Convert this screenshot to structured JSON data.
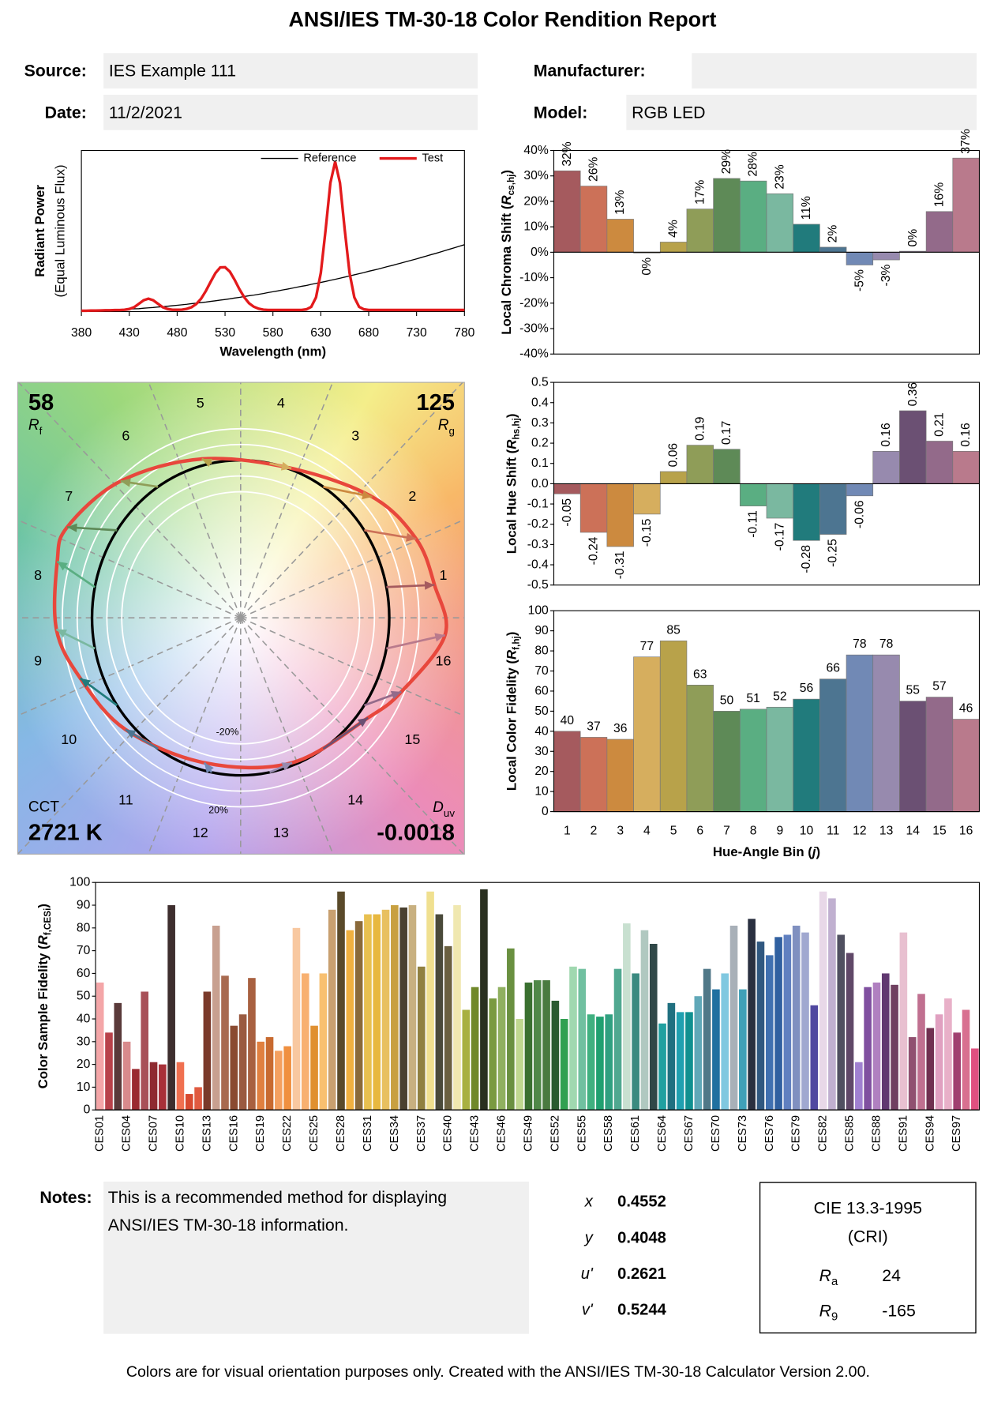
{
  "header": {
    "title": "ANSI/IES TM-30-18 Color Rendition Report",
    "fields": [
      {
        "label": "Source:",
        "value": "IES Example 111"
      },
      {
        "label": "Date:",
        "value": "11/2/2021"
      },
      {
        "label": "Manufacturer:"
      },
      {
        "label": "Model:",
        "value": "RGB LED"
      }
    ]
  },
  "chart_data": [
    {
      "type": "line",
      "xlabel": "Wavelength (nm)",
      "ylabel": [
        "Radiant Power",
        "(Equal Luminous Flux)"
      ],
      "legend": "top-right",
      "xlim": [
        380,
        780
      ],
      "xticks": [
        380,
        430,
        480,
        530,
        580,
        630,
        680,
        730,
        780
      ],
      "ylim": [
        0,
        1
      ],
      "x": [
        380,
        385,
        390,
        395,
        400,
        405,
        410,
        415,
        420,
        425,
        430,
        435,
        440,
        445,
        450,
        455,
        460,
        465,
        470,
        475,
        480,
        485,
        490,
        495,
        500,
        505,
        510,
        515,
        520,
        525,
        530,
        535,
        540,
        545,
        550,
        555,
        560,
        565,
        570,
        575,
        580,
        585,
        590,
        595,
        600,
        605,
        610,
        615,
        620,
        625,
        630,
        635,
        640,
        645,
        650,
        655,
        660,
        665,
        670,
        675,
        680,
        685,
        690,
        695,
        700,
        705,
        710,
        715,
        720,
        725,
        730,
        735,
        740,
        745,
        750,
        755,
        760,
        765,
        770,
        775,
        780
      ],
      "series": [
        {
          "name": "Reference",
          "color": "#000000",
          "values": [
            0.005,
            0.005,
            0.006,
            0.006,
            0.007,
            0.008,
            0.009,
            0.01,
            0.011,
            0.013,
            0.015,
            0.017,
            0.018,
            0.021,
            0.023,
            0.025,
            0.028,
            0.03,
            0.033,
            0.036,
            0.039,
            0.042,
            0.045,
            0.049,
            0.052,
            0.056,
            0.059,
            0.063,
            0.067,
            0.071,
            0.075,
            0.079,
            0.084,
            0.088,
            0.093,
            0.098,
            0.102,
            0.107,
            0.112,
            0.118,
            0.123,
            0.128,
            0.134,
            0.139,
            0.145,
            0.151,
            0.157,
            0.162,
            0.169,
            0.175,
            0.181,
            0.187,
            0.194,
            0.2,
            0.207,
            0.214,
            0.221,
            0.228,
            0.235,
            0.242,
            0.25,
            0.257,
            0.264,
            0.272,
            0.28,
            0.287,
            0.295,
            0.303,
            0.311,
            0.319,
            0.327,
            0.336,
            0.344,
            0.353,
            0.361,
            0.37,
            0.379,
            0.388,
            0.397,
            0.406,
            0.415
          ]
        },
        {
          "name": "Test",
          "color": "#e31a1c",
          "values": [
            0.005,
            0.005,
            0.006,
            0.006,
            0.007,
            0.008,
            0.008,
            0.009,
            0.009,
            0.011,
            0.016,
            0.027,
            0.048,
            0.07,
            0.08,
            0.07,
            0.048,
            0.027,
            0.016,
            0.011,
            0.011,
            0.012,
            0.017,
            0.027,
            0.047,
            0.08,
            0.128,
            0.185,
            0.239,
            0.274,
            0.275,
            0.248,
            0.197,
            0.139,
            0.089,
            0.052,
            0.03,
            0.018,
            0.012,
            0.01,
            0.01,
            0.01,
            0.01,
            0.01,
            0.01,
            0.01,
            0.01,
            0.014,
            0.029,
            0.088,
            0.24,
            0.507,
            0.799,
            0.93,
            0.799,
            0.507,
            0.24,
            0.088,
            0.029,
            0.014,
            0.01,
            0.01,
            0.01,
            0.01,
            0.01,
            0.01,
            0.01,
            0.01,
            0.01,
            0.01,
            0.01,
            0.01,
            0.01,
            0.01,
            0.01,
            0.01,
            0.01,
            0.01,
            0.01,
            0.01,
            0.01
          ]
        }
      ]
    },
    {
      "type": "bar",
      "ylabel": [
        "Local Chroma Shift (",
        "R",
        "cs,hj",
        ")"
      ],
      "value_label_rotation": -90,
      "values": [
        32,
        26,
        13,
        -0.3,
        4,
        17,
        29,
        28,
        23,
        11,
        2,
        -5,
        -3,
        0.4,
        16,
        37
      ],
      "value_labels": [
        "32%",
        "26%",
        "13%",
        "0%",
        "4%",
        "17%",
        "29%",
        "28%",
        "23%",
        "11%",
        "2%",
        "-5%",
        "-3%",
        "0%",
        "16%",
        "37%"
      ],
      "colors": [
        "#a55a5e",
        "#cc7158",
        "#cc8a3f",
        "#d6ae5e",
        "#b8a24a",
        "#8f9d58",
        "#5e8a57",
        "#5aae82",
        "#7ab8a0",
        "#217b7c",
        "#4d7591",
        "#7189b5",
        "#978aae",
        "#6b5073",
        "#936a8a",
        "#b97a8c"
      ],
      "ylim": [
        -40,
        40
      ],
      "yticks": [
        {
          "value": -40,
          "label": "-40%"
        },
        {
          "value": -30,
          "label": "-30%"
        },
        {
          "value": -20,
          "label": "-20%"
        },
        {
          "value": -10,
          "label": "-10%"
        },
        {
          "value": 0,
          "label": "0%"
        },
        {
          "value": 10,
          "label": "10%"
        },
        {
          "value": 20,
          "label": "20%"
        },
        {
          "value": 30,
          "label": "30%"
        },
        {
          "value": 40,
          "label": "40%"
        }
      ]
    },
    {
      "type": "bar",
      "ylabel": [
        "Local Hue Shift (",
        "R",
        "hs,hj",
        ")"
      ],
      "value_label_rotation": -90,
      "values": [
        -0.05,
        -0.24,
        -0.31,
        -0.15,
        0.06,
        0.19,
        0.17,
        -0.11,
        -0.17,
        -0.28,
        -0.25,
        -0.06,
        0.16,
        0.36,
        0.21,
        0.16
      ],
      "colors": [
        "#a55a5e",
        "#cc7158",
        "#cc8a3f",
        "#d6ae5e",
        "#b8a24a",
        "#8f9d58",
        "#5e8a57",
        "#5aae82",
        "#7ab8a0",
        "#217b7c",
        "#4d7591",
        "#7189b5",
        "#978aae",
        "#6b5073",
        "#936a8a",
        "#b97a8c"
      ],
      "ylim": [
        -0.5,
        0.5
      ],
      "yticks": [
        -0.5,
        -0.4,
        -0.3,
        -0.2,
        -0.1,
        {
          "value": 0,
          "label": "0.0"
        },
        0.1,
        0.2,
        0.3,
        0.4,
        0.5
      ]
    },
    {
      "type": "bar",
      "ylabel": [
        "Local Color Fidelity (",
        "R",
        "f,hj",
        ")"
      ],
      "xlabel": [
        "Hue-Angle Bin (",
        "j",
        ")"
      ],
      "value_label_rotation": 0,
      "categories": [
        "1",
        "2",
        "3",
        "4",
        "5",
        "6",
        "7",
        "8",
        "9",
        "10",
        "11",
        "12",
        "13",
        "14",
        "15",
        "16"
      ],
      "values": [
        40,
        37,
        36,
        77,
        85,
        63,
        50,
        51,
        52,
        56,
        66,
        78,
        78,
        55,
        57,
        46
      ],
      "colors": [
        "#a55a5e",
        "#cc7158",
        "#cc8a3f",
        "#d6ae5e",
        "#b8a24a",
        "#8f9d58",
        "#5e8a57",
        "#5aae82",
        "#7ab8a0",
        "#217b7c",
        "#4d7591",
        "#7189b5",
        "#978aae",
        "#6b5073",
        "#936a8a",
        "#b97a8c"
      ],
      "ylim": [
        0,
        100
      ],
      "yticks": [
        0,
        10,
        20,
        30,
        40,
        50,
        60,
        70,
        80,
        90,
        100
      ]
    },
    {
      "type": "vector",
      "rf": 58,
      "rf_label": {
        "symbol": "R",
        "sub": "f"
      },
      "rg": 125,
      "rg_label": {
        "symbol": "R",
        "sub": "g"
      },
      "cct_label": "CCT",
      "cct": "2721 K",
      "duv_label": {
        "symbol": "D",
        "sub": "uv"
      },
      "duv": -0.0018,
      "bin_labels": [
        "1",
        "2",
        "3",
        "4",
        "5",
        "6",
        "7",
        "8",
        "9",
        "10",
        "11",
        "12",
        "13",
        "14",
        "15",
        "16"
      ],
      "rings": [
        {
          "value": -20,
          "label": "-20%"
        },
        {
          "value": 20,
          "label": "20%"
        }
      ],
      "minor_rings": [
        -10,
        10
      ],
      "reference_color": "#000000",
      "test_color": "#e8473c"
    },
    {
      "type": "bar",
      "ylabel": [
        "Color Sample Fidelity (",
        "R",
        "f,CESi",
        ")"
      ],
      "categories": [
        "CES01",
        null,
        null,
        "CES04",
        null,
        null,
        "CES07",
        null,
        null,
        "CES10",
        null,
        null,
        "CES13",
        null,
        null,
        "CES16",
        null,
        null,
        "CES19",
        null,
        null,
        "CES22",
        null,
        null,
        "CES25",
        null,
        null,
        "CES28",
        null,
        null,
        "CES31",
        null,
        null,
        "CES34",
        null,
        null,
        "CES37",
        null,
        null,
        "CES40",
        null,
        null,
        "CES43",
        null,
        null,
        "CES46",
        null,
        null,
        "CES49",
        null,
        null,
        "CES52",
        null,
        null,
        "CES55",
        null,
        null,
        "CES58",
        null,
        null,
        "CES61",
        null,
        null,
        "CES64",
        null,
        null,
        "CES67",
        null,
        null,
        "CES70",
        null,
        null,
        "CES73",
        null,
        null,
        "CES76",
        null,
        null,
        "CES79",
        null,
        null,
        "CES82",
        null,
        null,
        "CES85",
        null,
        null,
        "CES88",
        null,
        null,
        "CES91",
        null,
        null,
        "CES94",
        null,
        null,
        "CES97",
        null,
        null
      ],
      "values": [
        56,
        34,
        47,
        30,
        18,
        52,
        21,
        20,
        90,
        21,
        7,
        10,
        52,
        81,
        59,
        37,
        42,
        58,
        30,
        32,
        26,
        28,
        80,
        60,
        37,
        60,
        88,
        96,
        79,
        83,
        86,
        86,
        88,
        90,
        89,
        90,
        63,
        96,
        86,
        72,
        90,
        44,
        54,
        97,
        49,
        54,
        71,
        40,
        56,
        57,
        57,
        48,
        40,
        63,
        62,
        42,
        41,
        42,
        62,
        82,
        60,
        79,
        73,
        38,
        47,
        43,
        43,
        50,
        62,
        53,
        60,
        81,
        53,
        84,
        74,
        68,
        76,
        77,
        81,
        78,
        46,
        96,
        93,
        77,
        69,
        21,
        54,
        56,
        60,
        55,
        78,
        32,
        51,
        36,
        42,
        49,
        34,
        44,
        27
      ],
      "colors": [
        "#f4a6a8",
        "#b8424a",
        "#5a3a3a",
        "#d88a8c",
        "#9a2a30",
        "#a85058",
        "#8e2a30",
        "#a83038",
        "#3e2e2e",
        "#f07050",
        "#d84a30",
        "#e05a40",
        "#7a3a2a",
        "#c8a090",
        "#a86a50",
        "#8a4a30",
        "#9a5a40",
        "#a86040",
        "#e08040",
        "#c86a30",
        "#f4a060",
        "#f09040",
        "#f8c8a0",
        "#f8b070",
        "#e09030",
        "#f8c070",
        "#c8a070",
        "#5a4a2a",
        "#f0b040",
        "#8a6a3a",
        "#e8c050",
        "#e8b840",
        "#e8c060",
        "#c8a040",
        "#4a4030",
        "#c8b080",
        "#908040",
        "#f0e090",
        "#4a4a3a",
        "#6a6040",
        "#f0e8b0",
        "#a8b040",
        "#70882a",
        "#2a3020",
        "#7a9a40",
        "#90b060",
        "#6a9040",
        "#c0d890",
        "#3a7030",
        "#508848",
        "#4a7a40",
        "#2a5a30",
        "#30a050",
        "#a0d8b0",
        "#70c0a0",
        "#40b080",
        "#20a070",
        "#30a080",
        "#50a890",
        "#c8e0d0",
        "#3a8a80",
        "#b0c8c0",
        "#304848",
        "#20a0a0",
        "#207080",
        "#20a0b0",
        "#109090",
        "#60a8b8",
        "#507888",
        "#2070a0",
        "#80c8e0",
        "#a8b0b8",
        "#40a0b8",
        "#2a3040",
        "#305880",
        "#4070b0",
        "#3060a0",
        "#6080c0",
        "#8090c0",
        "#a0a8d0",
        "#5048a0",
        "#e8d8e8",
        "#c0b0d0",
        "#505060",
        "#604868",
        "#a080d0",
        "#8050a0",
        "#b080c0",
        "#603870",
        "#704060",
        "#e8c0d0",
        "#905070",
        "#c07090",
        "#703050",
        "#e0a0c0",
        "#e8b0c8",
        "#a04070",
        "#d87090",
        "#e05080"
      ],
      "ylim": [
        0,
        100
      ],
      "yticks": [
        0,
        10,
        20,
        30,
        40,
        50,
        60,
        70,
        80,
        90,
        100
      ]
    }
  ],
  "notes": {
    "label": "Notes:",
    "lines": [
      "This is a recommended method for displaying",
      "ANSI/IES TM-30-18 information."
    ]
  },
  "chromaticity": [
    {
      "label": "x",
      "value": 0.4552
    },
    {
      "label": "y",
      "value": 0.4048
    },
    {
      "label": "u'",
      "value": 0.2621
    },
    {
      "label": "v'",
      "value": 0.5244
    }
  ],
  "cri": {
    "title": "CIE 13.3-1995",
    "subtitle": "(CRI)",
    "rows": [
      {
        "symbol": "R",
        "sub": "a",
        "value": 24
      },
      {
        "symbol": "R",
        "sub": "9",
        "value": -165
      }
    ]
  },
  "footer": "Colors are for visual orientation purposes only. Created with the ANSI/IES TM-30-18 Calculator Version 2.00."
}
